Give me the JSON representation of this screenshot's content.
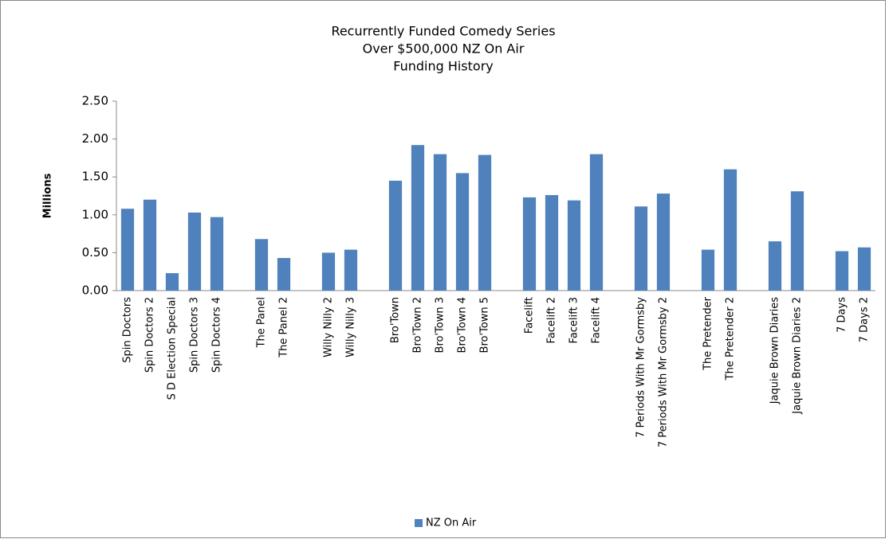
{
  "chart_data": {
    "type": "bar",
    "title": [
      "Recurrently Funded Comedy Series",
      "Over $500,000 NZ On Air",
      "Funding History"
    ],
    "y_label": "Millions",
    "categories": [
      "Spin Doctors",
      "Spin Doctors 2",
      "S D Election Special",
      "Spin Doctors 3",
      "Spin Doctors 4",
      null,
      "The Panel",
      "The Panel 2",
      null,
      "Willy Nilly 2",
      "Willy Nilly 3",
      null,
      "Bro'Town",
      "Bro'Town 2",
      "Bro'Town 3",
      "Bro'Town 4",
      "Bro'Town 5",
      null,
      "Facelift",
      "Facelift 2",
      "Facelift 3",
      "Facelift 4",
      null,
      "7 Periods With Mr Gormsby",
      "7 Periods With Mr Gormsby 2",
      null,
      "The Pretender",
      "The Pretender 2",
      null,
      "Jaquie Brown Diaries",
      "Jaquie Brown Diaries 2",
      null,
      "7 Days",
      "7 Days 2"
    ],
    "series": [
      {
        "name": "NZ On Air",
        "color": "#4f81bd",
        "values": [
          1.08,
          1.2,
          0.23,
          1.03,
          0.97,
          null,
          0.68,
          0.43,
          null,
          0.5,
          0.54,
          null,
          1.45,
          1.92,
          1.8,
          1.55,
          1.79,
          null,
          1.23,
          1.26,
          1.19,
          1.8,
          null,
          1.11,
          1.28,
          null,
          0.54,
          1.6,
          null,
          0.65,
          1.31,
          null,
          0.52,
          0.57
        ]
      }
    ],
    "ylim": [
      0,
      2.5
    ],
    "yticks": [
      {
        "value": 0,
        "label": "0.00"
      },
      {
        "value": 0.5,
        "label": "0.50"
      },
      {
        "value": 1,
        "label": "1.00"
      },
      {
        "value": 1.5,
        "label": "1.50"
      },
      {
        "value": 2,
        "label": "2.00"
      },
      {
        "value": 2.5,
        "label": "2.50"
      }
    ],
    "grid": false,
    "legend": "bottom"
  }
}
